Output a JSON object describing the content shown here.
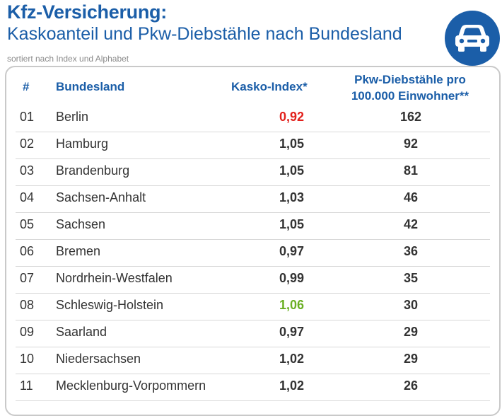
{
  "header": {
    "title": "Kfz-Versicherung:",
    "subtitle": "Kaskoanteil und Pkw-Diebstähle nach Bundesland",
    "note": "sortiert nach Index und Alphabet"
  },
  "icons": {
    "car": "car-icon"
  },
  "colors": {
    "brand_blue": "#1b5ea8",
    "lowest_index": "#e2211c",
    "highest_index": "#6aaf23",
    "default_value": "#333333"
  },
  "table": {
    "columns": {
      "rank": "#",
      "state": "Bundesland",
      "kasko": "Kasko-Index*",
      "theft_line1": "Pkw-Diebstähle pro",
      "theft_line2": "100.000 Einwohner**"
    },
    "rows": [
      {
        "rank": "01",
        "state": "Berlin",
        "kasko": "0,92",
        "theft": "162",
        "highlight": "lowest"
      },
      {
        "rank": "02",
        "state": "Hamburg",
        "kasko": "1,05",
        "theft": "92"
      },
      {
        "rank": "03",
        "state": "Brandenburg",
        "kasko": "1,05",
        "theft": "81"
      },
      {
        "rank": "04",
        "state": "Sachsen-Anhalt",
        "kasko": "1,03",
        "theft": "46"
      },
      {
        "rank": "05",
        "state": "Sachsen",
        "kasko": "1,05",
        "theft": "42"
      },
      {
        "rank": "06",
        "state": "Bremen",
        "kasko": "0,97",
        "theft": "36"
      },
      {
        "rank": "07",
        "state": "Nordrhein-Westfalen",
        "kasko": "0,99",
        "theft": "35"
      },
      {
        "rank": "08",
        "state": "Schleswig-Holstein",
        "kasko": "1,06",
        "theft": "30",
        "highlight": "highest"
      },
      {
        "rank": "09",
        "state": "Saarland",
        "kasko": "0,97",
        "theft": "29"
      },
      {
        "rank": "10",
        "state": "Niedersachsen",
        "kasko": "1,02",
        "theft": "29"
      },
      {
        "rank": "11",
        "state": "Mecklenburg-Vorpommern",
        "kasko": "1,02",
        "theft": "26"
      }
    ]
  }
}
